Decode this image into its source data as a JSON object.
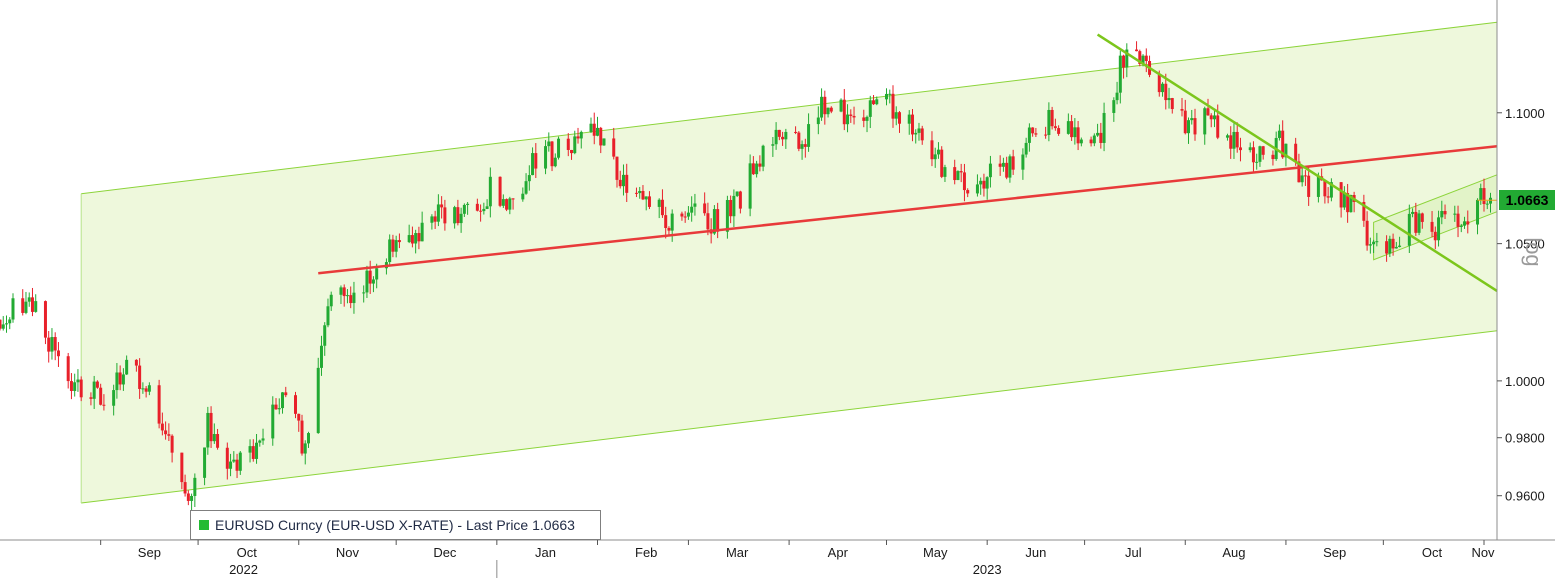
{
  "legend": {
    "text": "EURUSD Curncy (EUR-USD X-RATE) - Last Price 1.0663",
    "swatch_color": "#22bb33"
  },
  "last_price_tag": "1.0663",
  "scale_mode": "log",
  "chart_data": {
    "type": "candlestick",
    "title": "",
    "xlabel": "",
    "ylabel": "",
    "y_scale": "log",
    "ylim": [
      0.945,
      1.145
    ],
    "x_range": [
      "2022-08-01",
      "2023-11-05"
    ],
    "y_ticks": [
      "0.9600",
      "0.9800",
      "1.0000",
      "1.0500",
      "1.1000"
    ],
    "x_ticks": [
      {
        "label": "Sep",
        "date": "2022-09-01"
      },
      {
        "label": "Oct",
        "date": "2022-10-01"
      },
      {
        "label": "Nov",
        "date": "2022-11-01"
      },
      {
        "label": "Dec",
        "date": "2022-12-01"
      },
      {
        "label": "Jan",
        "date": "2023-01-01"
      },
      {
        "label": "Feb",
        "date": "2023-02-01"
      },
      {
        "label": "Mar",
        "date": "2023-03-01"
      },
      {
        "label": "Apr",
        "date": "2023-04-01"
      },
      {
        "label": "May",
        "date": "2023-05-01"
      },
      {
        "label": "Jun",
        "date": "2023-06-01"
      },
      {
        "label": "Jul",
        "date": "2023-07-01"
      },
      {
        "label": "Aug",
        "date": "2023-08-01"
      },
      {
        "label": "Sep",
        "date": "2023-09-01"
      },
      {
        "label": "Oct",
        "date": "2023-10-01"
      },
      {
        "label": "Nov",
        "date": "2023-11-01"
      }
    ],
    "year_labels": [
      {
        "label": "2022",
        "date": "2022-10-15"
      },
      {
        "label": "2023",
        "date": "2023-06-01"
      }
    ],
    "year_divider_date": "2023-01-01",
    "last_price": 1.0663,
    "up_color": "#22aa33",
    "down_color": "#e8202a",
    "channel_fill": "#eef8dc",
    "channel_line_color": "#8cd43a",
    "trend_color_red": "#e83a3a",
    "trend_color_green": "#7cc61c",
    "close_path": [
      [
        "2022-08-01",
        1.022
      ],
      [
        "2022-08-10",
        1.03
      ],
      [
        "2022-08-18",
        1.01
      ],
      [
        "2022-08-26",
        0.996
      ],
      [
        "2022-09-02",
        0.995
      ],
      [
        "2022-09-09",
        1.004
      ],
      [
        "2022-09-15",
        0.999
      ],
      [
        "2022-09-21",
        0.984
      ],
      [
        "2022-09-28",
        0.96
      ],
      [
        "2022-10-04",
        0.985
      ],
      [
        "2022-10-12",
        0.97
      ],
      [
        "2022-10-20",
        0.978
      ],
      [
        "2022-10-27",
        0.998
      ],
      [
        "2022-11-03",
        0.975
      ],
      [
        "2022-11-11",
        1.033
      ],
      [
        "2022-11-18",
        1.03
      ],
      [
        "2022-11-25",
        1.04
      ],
      [
        "2022-12-02",
        1.052
      ],
      [
        "2022-12-09",
        1.055
      ],
      [
        "2022-12-15",
        1.063
      ],
      [
        "2022-12-22",
        1.06
      ],
      [
        "2022-12-30",
        1.07
      ],
      [
        "2023-01-06",
        1.064
      ],
      [
        "2023-01-13",
        1.083
      ],
      [
        "2023-01-20",
        1.085
      ],
      [
        "2023-01-26",
        1.09
      ],
      [
        "2023-02-02",
        1.092
      ],
      [
        "2023-02-09",
        1.072
      ],
      [
        "2023-02-16",
        1.068
      ],
      [
        "2023-02-23",
        1.06
      ],
      [
        "2023-03-03",
        1.062
      ],
      [
        "2023-03-09",
        1.058
      ],
      [
        "2023-03-16",
        1.065
      ],
      [
        "2023-03-23",
        1.084
      ],
      [
        "2023-03-30",
        1.09
      ],
      [
        "2023-04-06",
        1.092
      ],
      [
        "2023-04-13",
        1.105
      ],
      [
        "2023-04-20",
        1.096
      ],
      [
        "2023-04-27",
        1.103
      ],
      [
        "2023-05-04",
        1.102
      ],
      [
        "2023-05-11",
        1.092
      ],
      [
        "2023-05-18",
        1.08
      ],
      [
        "2023-05-25",
        1.073
      ],
      [
        "2023-06-01",
        1.076
      ],
      [
        "2023-06-08",
        1.078
      ],
      [
        "2023-06-15",
        1.095
      ],
      [
        "2023-06-22",
        1.096
      ],
      [
        "2023-06-29",
        1.09
      ],
      [
        "2023-07-06",
        1.09
      ],
      [
        "2023-07-13",
        1.122
      ],
      [
        "2023-07-19",
        1.12
      ],
      [
        "2023-07-26",
        1.105
      ],
      [
        "2023-08-02",
        1.095
      ],
      [
        "2023-08-09",
        1.098
      ],
      [
        "2023-08-16",
        1.088
      ],
      [
        "2023-08-23",
        1.085
      ],
      [
        "2023-08-30",
        1.088
      ],
      [
        "2023-09-06",
        1.072
      ],
      [
        "2023-09-13",
        1.073
      ],
      [
        "2023-09-20",
        1.067
      ],
      [
        "2023-09-27",
        1.049
      ],
      [
        "2023-10-03",
        1.048
      ],
      [
        "2023-10-10",
        1.058
      ],
      [
        "2023-10-17",
        1.056
      ],
      [
        "2023-10-24",
        1.061
      ],
      [
        "2023-10-27",
        1.058
      ],
      [
        "2023-10-31",
        1.07
      ],
      [
        "2023-11-03",
        1.0663
      ]
    ],
    "channel": {
      "start": [
        "2022-08-26",
        0.9575
      ],
      "end": [
        "2023-11-05",
        1.018
      ],
      "upper_start_price": 1.0688,
      "upper_end_price": 1.136
    },
    "trend_lines": [
      {
        "color": "red",
        "start": [
          "2022-11-07",
          1.039
        ],
        "end": [
          "2023-11-05",
          1.087
        ]
      },
      {
        "color": "green",
        "start": [
          "2023-07-05",
          1.131
        ],
        "end": [
          "2023-11-05",
          1.0325
        ]
      }
    ],
    "sub_channel": {
      "lower": [
        [
          "2023-09-28",
          1.044
        ],
        [
          "2023-11-05",
          1.062
        ]
      ],
      "upper": [
        [
          "2023-09-28",
          1.058
        ],
        [
          "2023-11-05",
          1.076
        ]
      ]
    }
  }
}
